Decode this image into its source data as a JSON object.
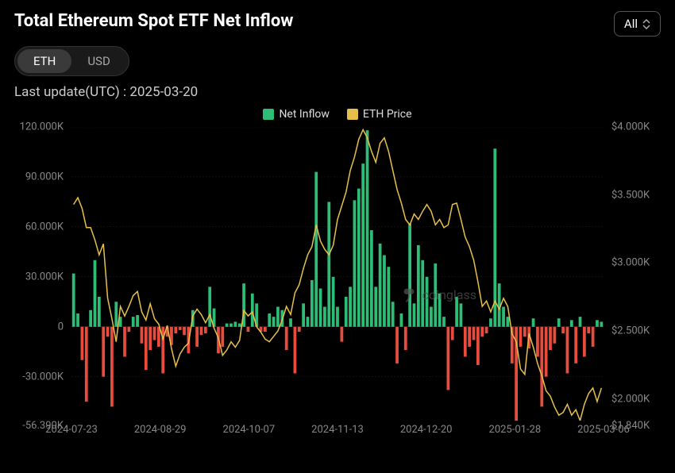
{
  "header": {
    "title": "Total Ethereum Spot ETF Net Inflow",
    "all_button_label": "All"
  },
  "toggle": {
    "eth_label": "ETH",
    "usd_label": "USD",
    "active": "ETH"
  },
  "last_update_label": "Last update(UTC) : 2025-03-20",
  "legend": {
    "net_inflow_label": "Net Inflow",
    "price_label": "ETH Price",
    "net_inflow_color": "#2dbd77",
    "net_outflow_color": "#e74c3c",
    "price_color": "#e6c04a"
  },
  "chart": {
    "type": "bar_line_dual_axis",
    "background_color": "#000000",
    "grid_color": "#2a2a2a",
    "grid_dash": "3 3",
    "axis_font_size": 13,
    "axis_color": "#888888",
    "y_left": {
      "min": -56390,
      "max": 120000,
      "ticks": [
        120000,
        90000,
        60000,
        30000,
        0,
        -30000
      ],
      "tick_labels": [
        "120.000K",
        "90.000K",
        "60.000K",
        "30.000K",
        "0",
        "-30.000K"
      ],
      "extra_tick": "-56.390K"
    },
    "y_right": {
      "min": 1840,
      "max": 4000,
      "ticks": [
        4000,
        3500,
        3000,
        2500,
        2000
      ],
      "tick_labels": [
        "$4.000K",
        "$3.500K",
        "$3.000K",
        "$2.500K",
        "$2.000K"
      ],
      "extra_tick": "$1.840K"
    },
    "x_labels": [
      "2024-07-23",
      "2024-08-29",
      "2024-10-07",
      "2024-11-13",
      "2024-12-20",
      "2025-01-28",
      "2025-03-06"
    ],
    "bars": [
      32000,
      8000,
      -20000,
      -45000,
      10000,
      40000,
      18000,
      -30000,
      -6000,
      -48000,
      15000,
      6000,
      -18000,
      -3000,
      6000,
      7000,
      -10000,
      -26000,
      -14000,
      -8000,
      -12000,
      -28000,
      -6000,
      -11000,
      -4000,
      -2000,
      -5000,
      -16000,
      10000,
      -12000,
      -5000,
      -4000,
      24000,
      11000,
      -16000,
      -12000,
      2000,
      2000,
      3000,
      2000,
      26000,
      -3000,
      20000,
      14000,
      -3000,
      -3000,
      8000,
      6000,
      12000,
      10000,
      -14000,
      5000,
      -28000,
      -3000,
      14000,
      6000,
      28000,
      93000,
      23000,
      12000,
      75000,
      30000,
      12000,
      -9000,
      18000,
      24000,
      76000,
      83000,
      98000,
      118000,
      58000,
      24000,
      50000,
      43000,
      36000,
      15000,
      -22000,
      8000,
      -14000,
      62000,
      14000,
      49000,
      40000,
      30000,
      12000,
      38000,
      20000,
      6000,
      -38000,
      -8000,
      18000,
      14000,
      -18000,
      -12000,
      -8000,
      -23000,
      -6000,
      -4000,
      5000,
      107000,
      26000,
      12000,
      6000,
      -22000,
      -56390,
      -12000,
      -6000,
      -13000,
      5000,
      -18000,
      -48000,
      -30000,
      -14000,
      -10000,
      5000,
      -4000,
      -28000,
      4000,
      -22000,
      6000,
      -18000,
      -4000,
      -12000,
      4000,
      3000
    ],
    "price_line": [
      3430,
      3480,
      3400,
      3260,
      3260,
      3170,
      3060,
      3140,
      2740,
      2590,
      2420,
      2680,
      2610,
      2680,
      2760,
      2790,
      2640,
      2580,
      2700,
      2590,
      2550,
      2440,
      2540,
      2370,
      2240,
      2330,
      2380,
      2410,
      2610,
      2660,
      2620,
      2560,
      2620,
      2520,
      2450,
      2320,
      2360,
      2420,
      2380,
      2430,
      2650,
      2610,
      2640,
      2530,
      2490,
      2440,
      2420,
      2460,
      2500,
      2580,
      2680,
      2620,
      2780,
      2840,
      2960,
      3060,
      3120,
      3280,
      3160,
      3100,
      3060,
      3130,
      3320,
      3420,
      3520,
      3680,
      3780,
      3910,
      3980,
      3920,
      3820,
      3740,
      3880,
      3920,
      3820,
      3680,
      3540,
      3440,
      3320,
      3280,
      3360,
      3320,
      3380,
      3430,
      3380,
      3280,
      3320,
      3260,
      3280,
      3430,
      3440,
      3320,
      3190,
      3120,
      3020,
      2860,
      2680,
      2720,
      2640,
      2720,
      2660,
      2740,
      2680,
      2480,
      2420,
      2220,
      2180,
      2480,
      2380,
      2260,
      2170,
      2060,
      2020,
      1940,
      1880,
      1900,
      1960,
      1880,
      1920,
      1840,
      1960,
      2040,
      2080,
      1980,
      2080
    ],
    "bar_color_pos": "#2dbd77",
    "bar_color_neg": "#e74c3c",
    "line_color": "#e6c04a",
    "line_width": 1.5
  },
  "watermark": {
    "text": "coinglass"
  }
}
